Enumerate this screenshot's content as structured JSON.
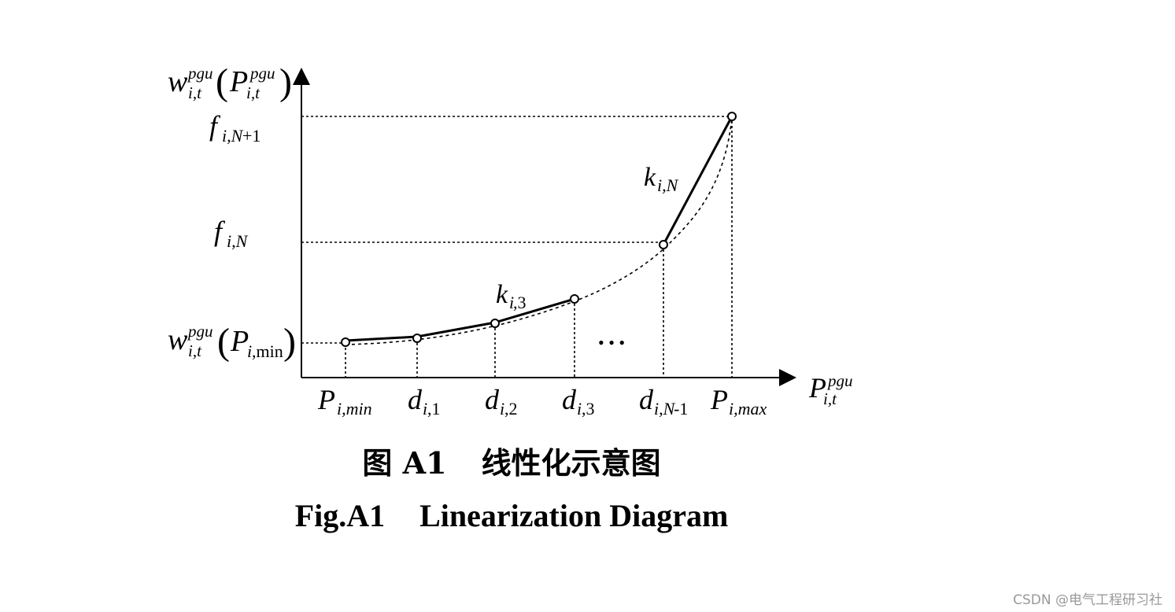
{
  "diagram": {
    "y_axis_label": {
      "base": "w",
      "sub": "i,t",
      "sup": "pgu",
      "arg_base": "P",
      "arg_sub": "i,t",
      "arg_sup": "pgu"
    },
    "x_axis_label": {
      "base": "P",
      "sub": "i,t",
      "sup": "pgu"
    },
    "y_ticks": [
      {
        "id": "f-n1",
        "base": "f",
        "sub_italic": "i,N",
        "sub_upright": "+1"
      },
      {
        "id": "f-n",
        "base": "f",
        "sub_italic": "i,N",
        "sub_upright": ""
      },
      {
        "id": "w-min",
        "base": "w",
        "sub": "i,t",
        "sup": "pgu",
        "arg_base": "P",
        "arg_sub_italic": "i",
        "arg_sub_upright": ",min"
      }
    ],
    "x_ticks": [
      {
        "id": "pmin",
        "base": "P",
        "sub": "i,min"
      },
      {
        "id": "d1",
        "base": "d",
        "sub_italic": "i",
        "sub_upright": ",1"
      },
      {
        "id": "d2",
        "base": "d",
        "sub_italic": "i",
        "sub_upright": ",2"
      },
      {
        "id": "d3",
        "base": "d",
        "sub_italic": "i",
        "sub_upright": ",3"
      },
      {
        "id": "dn1",
        "base": "d",
        "sub_italic": "i,N",
        "sub_upright": "-1"
      },
      {
        "id": "pmax",
        "base": "P",
        "sub": "i,max"
      }
    ],
    "slope_labels": [
      {
        "id": "k3",
        "base": "k",
        "sub_italic": "i",
        "sub_upright": ",3"
      },
      {
        "id": "kn",
        "base": "k",
        "sub_italic": "i,N",
        "sub_upright": ""
      }
    ],
    "ellipsis": "• • •"
  },
  "caption": {
    "cn_prefix": "图 A1",
    "cn_title": "线性化示意图",
    "en_prefix": "Fig.A1",
    "en_title": "Linearization Diagram"
  },
  "watermark": "CSDN @电气工程研习社"
}
